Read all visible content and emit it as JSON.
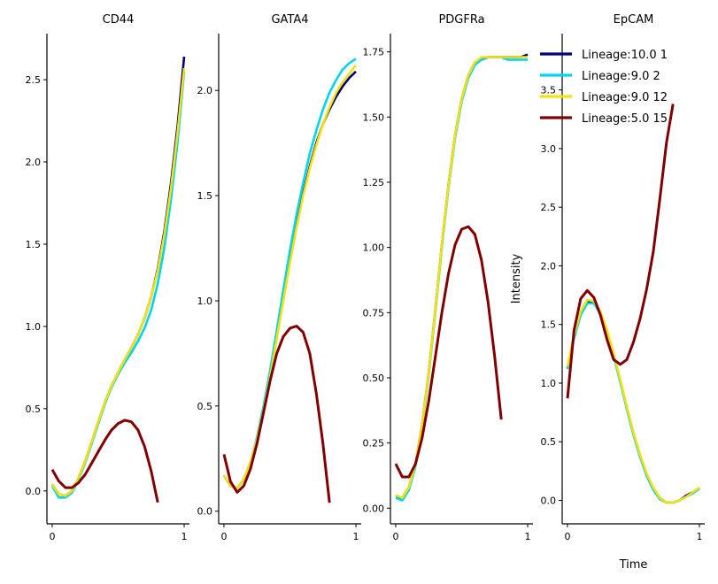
{
  "chart_data": [
    {
      "type": "line",
      "title": "CD44",
      "xlabel": "",
      "ylabel": "",
      "xlim": [
        -0.04,
        1.04
      ],
      "ylim": [
        -0.2,
        2.78
      ],
      "xticks": [
        0,
        1
      ],
      "xtick_labels": [
        "0",
        "1"
      ],
      "yticks": [
        0,
        0.5,
        1,
        1.5,
        2,
        2.5
      ],
      "ytick_labels": [
        "0.0",
        "0.5",
        "1.0",
        "1.5",
        "2.0",
        "2.5"
      ],
      "series": [
        {
          "name": "Lineage:10.0 1",
          "color": "#000080",
          "x": [
            0,
            0.05,
            0.1,
            0.15,
            0.2,
            0.25,
            0.3,
            0.35,
            0.4,
            0.45,
            0.5,
            0.55,
            0.6,
            0.65,
            0.7,
            0.75,
            0.8,
            0.85,
            0.9,
            0.95,
            1.0
          ],
          "y": [
            0.04,
            -0.02,
            -0.03,
            0.0,
            0.08,
            0.18,
            0.3,
            0.42,
            0.54,
            0.64,
            0.72,
            0.8,
            0.87,
            0.95,
            1.05,
            1.18,
            1.35,
            1.58,
            1.87,
            2.22,
            2.64
          ]
        },
        {
          "name": "Lineage:9.0 2",
          "color": "#00d4f0",
          "x": [
            0,
            0.05,
            0.1,
            0.15,
            0.2,
            0.25,
            0.3,
            0.35,
            0.4,
            0.45,
            0.5,
            0.55,
            0.6,
            0.65,
            0.7,
            0.75,
            0.8,
            0.85,
            0.9,
            0.95,
            1.0
          ],
          "y": [
            0.03,
            -0.04,
            -0.04,
            -0.01,
            0.07,
            0.17,
            0.29,
            0.41,
            0.53,
            0.63,
            0.71,
            0.78,
            0.84,
            0.91,
            0.99,
            1.1,
            1.26,
            1.48,
            1.77,
            2.12,
            2.55
          ]
        },
        {
          "name": "Lineage:9.0 12",
          "color": "#f5e10a",
          "x": [
            0,
            0.05,
            0.1,
            0.15,
            0.2,
            0.25,
            0.3,
            0.35,
            0.4,
            0.45,
            0.5,
            0.55,
            0.6,
            0.65,
            0.7,
            0.75,
            0.8,
            0.85,
            0.9,
            0.95,
            1.0
          ],
          "y": [
            0.04,
            -0.02,
            -0.03,
            0.0,
            0.08,
            0.18,
            0.3,
            0.42,
            0.54,
            0.64,
            0.72,
            0.8,
            0.87,
            0.95,
            1.05,
            1.18,
            1.34,
            1.56,
            1.84,
            2.18,
            2.57
          ]
        },
        {
          "name": "Lineage:5.0 15",
          "color": "#800000",
          "x": [
            0,
            0.05,
            0.1,
            0.15,
            0.2,
            0.25,
            0.3,
            0.35,
            0.4,
            0.45,
            0.5,
            0.55,
            0.6,
            0.65,
            0.7,
            0.75,
            0.8
          ],
          "y": [
            0.13,
            0.06,
            0.02,
            0.02,
            0.05,
            0.1,
            0.17,
            0.24,
            0.31,
            0.37,
            0.41,
            0.43,
            0.42,
            0.37,
            0.27,
            0.12,
            -0.07
          ]
        }
      ]
    },
    {
      "type": "line",
      "title": "GATA4",
      "xlabel": "",
      "ylabel": "",
      "xlim": [
        -0.04,
        1.04
      ],
      "ylim": [
        -0.06,
        2.27
      ],
      "xticks": [
        0,
        1
      ],
      "xtick_labels": [
        "0",
        "1"
      ],
      "yticks": [
        0,
        0.5,
        1,
        1.5,
        2
      ],
      "ytick_labels": [
        "0.0",
        "0.5",
        "1.0",
        "1.5",
        "2.0"
      ],
      "series": [
        {
          "name": "Lineage:10.0 1",
          "color": "#000080",
          "x": [
            0,
            0.05,
            0.1,
            0.15,
            0.2,
            0.25,
            0.3,
            0.35,
            0.4,
            0.45,
            0.5,
            0.55,
            0.6,
            0.65,
            0.7,
            0.75,
            0.8,
            0.85,
            0.9,
            0.95,
            1.0
          ],
          "y": [
            0.17,
            0.12,
            0.11,
            0.15,
            0.23,
            0.34,
            0.48,
            0.65,
            0.83,
            1.01,
            1.19,
            1.36,
            1.51,
            1.64,
            1.75,
            1.84,
            1.91,
            1.97,
            2.02,
            2.06,
            2.09
          ]
        },
        {
          "name": "Lineage:9.0 2",
          "color": "#00d4f0",
          "x": [
            0,
            0.05,
            0.1,
            0.15,
            0.2,
            0.25,
            0.3,
            0.35,
            0.4,
            0.45,
            0.5,
            0.55,
            0.6,
            0.65,
            0.7,
            0.75,
            0.8,
            0.85,
            0.9,
            0.95,
            1.0
          ],
          "y": [
            0.17,
            0.12,
            0.11,
            0.15,
            0.23,
            0.35,
            0.5,
            0.67,
            0.86,
            1.05,
            1.24,
            1.41,
            1.56,
            1.7,
            1.81,
            1.91,
            1.99,
            2.05,
            2.1,
            2.13,
            2.15
          ]
        },
        {
          "name": "Lineage:9.0 12",
          "color": "#f5e10a",
          "x": [
            0,
            0.05,
            0.1,
            0.15,
            0.2,
            0.25,
            0.3,
            0.35,
            0.4,
            0.45,
            0.5,
            0.55,
            0.6,
            0.65,
            0.7,
            0.75,
            0.8,
            0.85,
            0.9,
            0.95,
            1.0
          ],
          "y": [
            0.17,
            0.12,
            0.11,
            0.15,
            0.23,
            0.34,
            0.48,
            0.64,
            0.82,
            1.0,
            1.18,
            1.35,
            1.5,
            1.63,
            1.74,
            1.84,
            1.92,
            1.99,
            2.04,
            2.08,
            2.12
          ]
        },
        {
          "name": "Lineage:5.0 15",
          "color": "#800000",
          "x": [
            0,
            0.05,
            0.1,
            0.15,
            0.2,
            0.25,
            0.3,
            0.35,
            0.4,
            0.45,
            0.5,
            0.55,
            0.6,
            0.65,
            0.7,
            0.75,
            0.8
          ],
          "y": [
            0.27,
            0.14,
            0.09,
            0.12,
            0.2,
            0.32,
            0.47,
            0.62,
            0.75,
            0.83,
            0.87,
            0.88,
            0.85,
            0.75,
            0.56,
            0.32,
            0.04
          ]
        }
      ]
    },
    {
      "type": "line",
      "title": "PDGFRa",
      "xlabel": "",
      "ylabel": "",
      "xlim": [
        -0.04,
        1.04
      ],
      "ylim": [
        -0.06,
        1.82
      ],
      "xticks": [
        0,
        1
      ],
      "xtick_labels": [
        "0",
        "1"
      ],
      "yticks": [
        0,
        0.25,
        0.5,
        0.75,
        1,
        1.25,
        1.5,
        1.75
      ],
      "ytick_labels": [
        "0.00",
        "0.25",
        "0.50",
        "0.75",
        "1.00",
        "1.25",
        "1.50",
        "1.75"
      ],
      "series": [
        {
          "name": "Lineage:10.0 1",
          "color": "#000080",
          "x": [
            0,
            0.05,
            0.1,
            0.15,
            0.2,
            0.25,
            0.3,
            0.35,
            0.4,
            0.45,
            0.5,
            0.55,
            0.6,
            0.65,
            0.7,
            0.75,
            0.8,
            0.85,
            0.9,
            0.95,
            1.0
          ],
          "y": [
            0.04,
            0.04,
            0.08,
            0.17,
            0.32,
            0.52,
            0.76,
            1.01,
            1.24,
            1.43,
            1.57,
            1.66,
            1.71,
            1.72,
            1.73,
            1.73,
            1.73,
            1.73,
            1.73,
            1.73,
            1.74
          ]
        },
        {
          "name": "Lineage:9.0 2",
          "color": "#00d4f0",
          "x": [
            0,
            0.05,
            0.1,
            0.15,
            0.2,
            0.25,
            0.3,
            0.35,
            0.4,
            0.45,
            0.5,
            0.55,
            0.6,
            0.65,
            0.7,
            0.75,
            0.8,
            0.85,
            0.9,
            0.95,
            1.0
          ],
          "y": [
            0.04,
            0.03,
            0.07,
            0.16,
            0.31,
            0.51,
            0.75,
            1.0,
            1.23,
            1.42,
            1.56,
            1.65,
            1.7,
            1.72,
            1.73,
            1.73,
            1.73,
            1.72,
            1.72,
            1.72,
            1.72
          ]
        },
        {
          "name": "Lineage:9.0 12",
          "color": "#f5e10a",
          "x": [
            0,
            0.05,
            0.1,
            0.15,
            0.2,
            0.25,
            0.3,
            0.35,
            0.4,
            0.45,
            0.5,
            0.55,
            0.6,
            0.65,
            0.7,
            0.75,
            0.8,
            0.85,
            0.9,
            0.95,
            1.0
          ],
          "y": [
            0.05,
            0.04,
            0.08,
            0.17,
            0.32,
            0.52,
            0.76,
            1.01,
            1.24,
            1.43,
            1.57,
            1.66,
            1.71,
            1.73,
            1.73,
            1.73,
            1.73,
            1.73,
            1.73,
            1.73,
            1.73
          ]
        },
        {
          "name": "Lineage:5.0 15",
          "color": "#800000",
          "x": [
            0,
            0.05,
            0.1,
            0.15,
            0.2,
            0.25,
            0.3,
            0.35,
            0.4,
            0.45,
            0.5,
            0.55,
            0.6,
            0.65,
            0.7,
            0.75,
            0.8
          ],
          "y": [
            0.17,
            0.12,
            0.12,
            0.17,
            0.27,
            0.41,
            0.58,
            0.75,
            0.9,
            1.01,
            1.07,
            1.08,
            1.05,
            0.95,
            0.79,
            0.58,
            0.34
          ]
        }
      ]
    },
    {
      "type": "line",
      "title": "EpCAM",
      "xlabel": "Time",
      "ylabel": "Intensity",
      "xlim": [
        -0.04,
        1.04
      ],
      "ylim": [
        -0.2,
        3.98
      ],
      "xticks": [
        0,
        1
      ],
      "xtick_labels": [
        "0",
        "1"
      ],
      "yticks": [
        0,
        0.5,
        1,
        1.5,
        2,
        2.5,
        3,
        3.5
      ],
      "ytick_labels": [
        "0.0",
        "0.5",
        "1.0",
        "1.5",
        "2.0",
        "2.5",
        "3.0",
        "3.5"
      ],
      "legend_position": "top-right",
      "series": [
        {
          "name": "Lineage:10.0 1",
          "color": "#000080",
          "x": [
            0,
            0.05,
            0.1,
            0.15,
            0.2,
            0.25,
            0.3,
            0.35,
            0.4,
            0.45,
            0.5,
            0.55,
            0.6,
            0.65,
            0.7,
            0.75,
            0.8,
            0.85,
            0.9,
            0.95,
            1.0
          ],
          "y": [
            1.13,
            1.4,
            1.6,
            1.7,
            1.69,
            1.6,
            1.44,
            1.24,
            1.02,
            0.79,
            0.57,
            0.38,
            0.22,
            0.1,
            0.02,
            -0.02,
            -0.02,
            0.0,
            0.04,
            0.07,
            0.1
          ]
        },
        {
          "name": "Lineage:9.0 2",
          "color": "#00d4f0",
          "x": [
            0,
            0.05,
            0.1,
            0.15,
            0.2,
            0.25,
            0.3,
            0.35,
            0.4,
            0.45,
            0.5,
            0.55,
            0.6,
            0.65,
            0.7,
            0.75,
            0.8,
            0.85,
            0.9,
            0.95,
            1.0
          ],
          "y": [
            1.12,
            1.38,
            1.58,
            1.68,
            1.68,
            1.59,
            1.43,
            1.23,
            1.01,
            0.78,
            0.56,
            0.37,
            0.21,
            0.09,
            0.01,
            -0.02,
            -0.02,
            0.0,
            0.03,
            0.06,
            0.1
          ]
        },
        {
          "name": "Lineage:9.0 12",
          "color": "#f5e10a",
          "x": [
            0,
            0.05,
            0.1,
            0.15,
            0.2,
            0.25,
            0.3,
            0.35,
            0.4,
            0.45,
            0.5,
            0.55,
            0.6,
            0.65,
            0.7,
            0.75,
            0.8,
            0.85,
            0.9,
            0.95,
            1.0
          ],
          "y": [
            1.14,
            1.41,
            1.61,
            1.71,
            1.7,
            1.61,
            1.45,
            1.25,
            1.03,
            0.8,
            0.58,
            0.39,
            0.23,
            0.11,
            0.02,
            -0.02,
            -0.02,
            0.0,
            0.03,
            0.07,
            0.11
          ]
        },
        {
          "name": "Lineage:5.0 15",
          "color": "#800000",
          "x": [
            0,
            0.05,
            0.1,
            0.15,
            0.2,
            0.25,
            0.3,
            0.35,
            0.4,
            0.45,
            0.5,
            0.55,
            0.6,
            0.65,
            0.7,
            0.75,
            0.8
          ],
          "y": [
            0.87,
            1.45,
            1.72,
            1.79,
            1.73,
            1.58,
            1.37,
            1.2,
            1.16,
            1.2,
            1.35,
            1.55,
            1.8,
            2.12,
            2.57,
            3.05,
            3.38
          ]
        }
      ]
    }
  ]
}
